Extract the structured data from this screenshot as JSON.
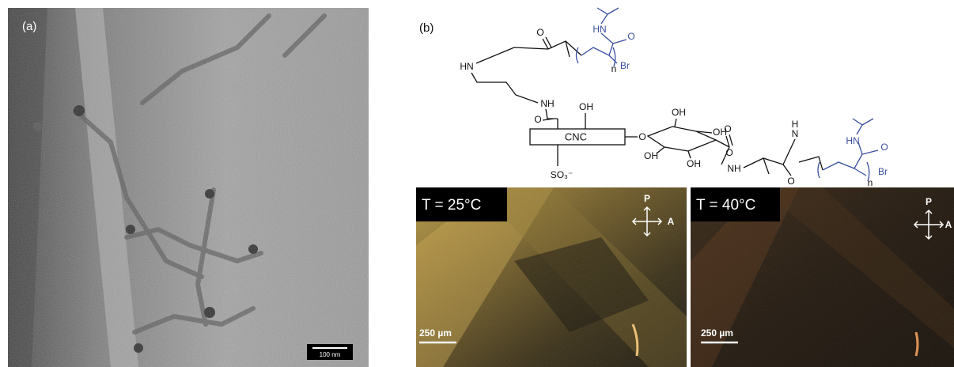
{
  "panel_a": {
    "label": "(a)",
    "scale_bar": "100 nm"
  },
  "panel_b": {
    "label": "(b)",
    "structure": {
      "core": "CNC",
      "sulfonate": "SO₃⁻",
      "atoms": [
        "HN",
        "O",
        "NH",
        "O",
        "OH",
        "O",
        "OH",
        "OH",
        "OH",
        "OH",
        "O",
        "O",
        "NH",
        "H",
        "N",
        "O",
        "n",
        "n"
      ],
      "polymer_atoms": [
        "HN",
        "O",
        "Br",
        "HN",
        "O",
        "Br"
      ]
    },
    "micrographs": [
      {
        "temperature": "T = 25°C",
        "polarizer": "P",
        "analyzer": "A",
        "scale_bar": "250 µm"
      },
      {
        "temperature": "T = 40°C",
        "polarizer": "P",
        "analyzer": "A",
        "scale_bar": "250 µm"
      }
    ]
  }
}
